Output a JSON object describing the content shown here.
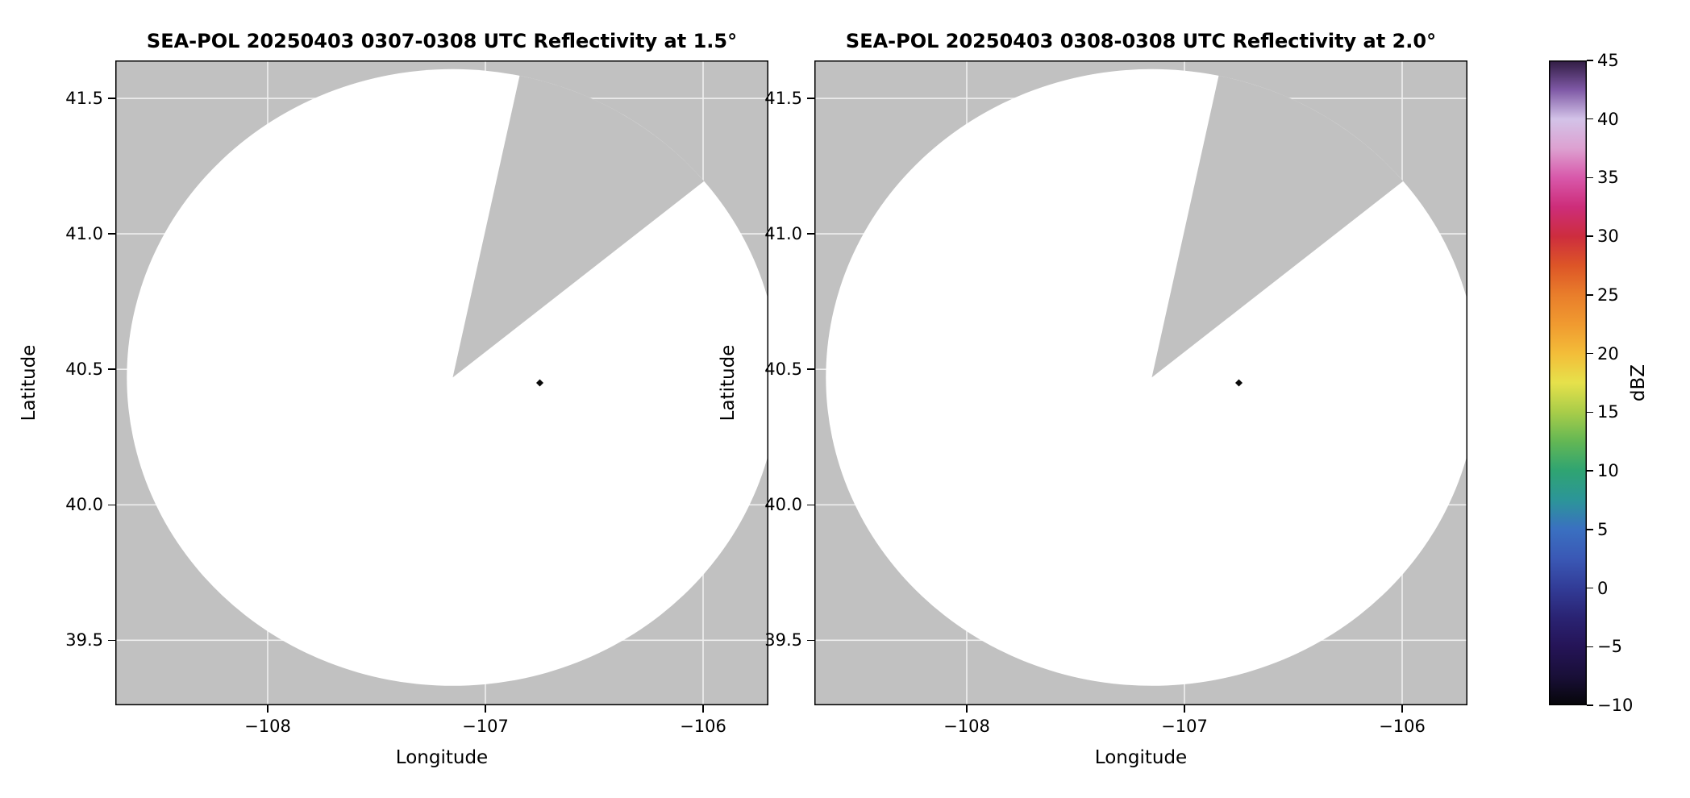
{
  "figure": {
    "background": "#ffffff"
  },
  "chart_data": [
    {
      "type": "heatmap",
      "title": "SEA-POL 20250403 0307-0308 UTC Reflectivity at 1.5°",
      "xlabel": "Longitude",
      "ylabel": "Latitude",
      "xlim": [
        -108.7,
        -105.7
      ],
      "ylim": [
        39.26,
        41.64
      ],
      "xticks": [
        -108,
        -107,
        -106
      ],
      "xtick_labels": [
        "−108",
        "−107",
        "−106"
      ],
      "yticks": [
        41.5,
        41.0,
        40.5,
        40.0,
        39.5
      ],
      "ytick_labels": [
        "41.5",
        "41.0",
        "40.5",
        "40.0",
        "39.5"
      ],
      "grid": true,
      "radar": {
        "center_lon": -107.15,
        "center_lat": 40.47,
        "range_deg_lon": 1.497,
        "range_deg_lat": 1.138,
        "missing_sector_azimuths_deg": [
          12.5,
          52
        ]
      },
      "echoes": [
        {
          "lon": -106.75,
          "lat": 40.45,
          "approx_dbz": -10
        }
      ],
      "colors": {
        "no_data": "#c1c1c1",
        "scanned_clear": "#ffffff",
        "echo": "#0a0a0a",
        "grid": "#ffffff",
        "frame": "#000000"
      }
    },
    {
      "type": "heatmap",
      "title": "SEA-POL 20250403 0308-0308 UTC Reflectivity at 2.0°",
      "xlabel": "Longitude",
      "ylabel": "Latitude",
      "xlim": [
        -108.7,
        -105.7
      ],
      "ylim": [
        39.26,
        41.64
      ],
      "xticks": [
        -108,
        -107,
        -106
      ],
      "xtick_labels": [
        "−108",
        "−107",
        "−106"
      ],
      "yticks": [
        41.5,
        41.0,
        40.5,
        40.0,
        39.5
      ],
      "ytick_labels": [
        "41.5",
        "41.0",
        "40.5",
        "40.0",
        "39.5"
      ],
      "grid": true,
      "radar": {
        "center_lon": -107.15,
        "center_lat": 40.47,
        "range_deg_lon": 1.497,
        "range_deg_lat": 1.138,
        "missing_sector_azimuths_deg": [
          12.5,
          52
        ]
      },
      "echoes": [
        {
          "lon": -106.75,
          "lat": 40.45,
          "approx_dbz": -10
        }
      ],
      "colors": {
        "no_data": "#c1c1c1",
        "scanned_clear": "#ffffff",
        "echo": "#0a0a0a",
        "grid": "#ffffff",
        "frame": "#000000"
      }
    }
  ],
  "colorbar": {
    "label": "dBZ",
    "min": -10,
    "max": 45,
    "ticks": [
      -10,
      -5,
      0,
      5,
      10,
      15,
      20,
      25,
      30,
      35,
      40,
      45
    ],
    "tick_labels": [
      "−10",
      "−5",
      "0",
      "5",
      "10",
      "15",
      "20",
      "25",
      "30",
      "35",
      "40",
      "45"
    ],
    "gradient_stops": [
      {
        "value": -10,
        "color": "#060609"
      },
      {
        "value": -7.5,
        "color": "#190f38"
      },
      {
        "value": -5,
        "color": "#251457"
      },
      {
        "value": -2.5,
        "color": "#2a2373"
      },
      {
        "value": 0,
        "color": "#323c97"
      },
      {
        "value": 2.5,
        "color": "#3a58b5"
      },
      {
        "value": 5,
        "color": "#3a70c1"
      },
      {
        "value": 7.5,
        "color": "#2c9599"
      },
      {
        "value": 10,
        "color": "#2fa472"
      },
      {
        "value": 12.5,
        "color": "#63b754"
      },
      {
        "value": 15,
        "color": "#a9cd49"
      },
      {
        "value": 17.5,
        "color": "#e6e14b"
      },
      {
        "value": 20,
        "color": "#f3bd39"
      },
      {
        "value": 22.5,
        "color": "#f09a30"
      },
      {
        "value": 25,
        "color": "#e97e2b"
      },
      {
        "value": 27.5,
        "color": "#dd5527"
      },
      {
        "value": 30,
        "color": "#cd2d3e"
      },
      {
        "value": 32.5,
        "color": "#cd2d7a"
      },
      {
        "value": 35,
        "color": "#d858aa"
      },
      {
        "value": 37.5,
        "color": "#dda1d1"
      },
      {
        "value": 40,
        "color": "#d3c3e8"
      },
      {
        "value": 42.5,
        "color": "#7e58a5"
      },
      {
        "value": 45,
        "color": "#301c42"
      }
    ]
  }
}
